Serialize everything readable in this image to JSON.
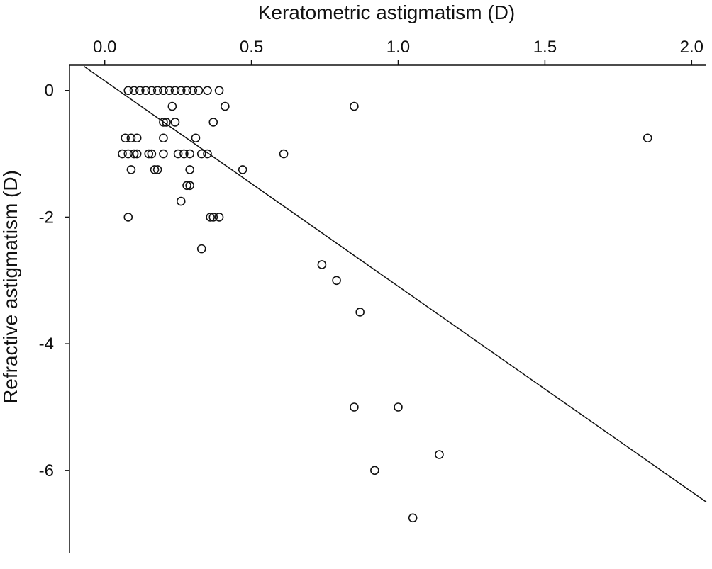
{
  "chart_data": {
    "type": "scatter",
    "xlabel": "Keratometric astigmatism (D)",
    "ylabel": "Refractive astigmatism (D)",
    "xlim": [
      -0.12,
      2.05
    ],
    "ylim": [
      -7.3,
      0.4
    ],
    "x_axis_position": "top",
    "x_ticks": [
      0.0,
      0.5,
      1.0,
      1.5,
      2.0
    ],
    "x_tick_labels": [
      "0.0",
      "0.5",
      "1.0",
      "1.5",
      "2.0"
    ],
    "y_ticks": [
      0,
      -2,
      -4,
      -6
    ],
    "y_tick_labels": [
      "0",
      "-2",
      "-4",
      "-6"
    ],
    "grid": false,
    "trend_line": {
      "x": [
        -0.07,
        2.05
      ],
      "y": [
        0.38,
        -6.5
      ]
    },
    "points": [
      {
        "x": 0.08,
        "y": 0
      },
      {
        "x": 0.1,
        "y": 0
      },
      {
        "x": 0.12,
        "y": 0
      },
      {
        "x": 0.14,
        "y": 0
      },
      {
        "x": 0.16,
        "y": 0
      },
      {
        "x": 0.18,
        "y": 0
      },
      {
        "x": 0.2,
        "y": 0
      },
      {
        "x": 0.22,
        "y": 0
      },
      {
        "x": 0.24,
        "y": 0
      },
      {
        "x": 0.26,
        "y": 0
      },
      {
        "x": 0.28,
        "y": 0
      },
      {
        "x": 0.3,
        "y": 0
      },
      {
        "x": 0.32,
        "y": 0
      },
      {
        "x": 0.35,
        "y": 0
      },
      {
        "x": 0.39,
        "y": 0
      },
      {
        "x": 0.85,
        "y": -0.25
      },
      {
        "x": 1.85,
        "y": -0.75
      },
      {
        "x": 0.23,
        "y": -0.25
      },
      {
        "x": 0.41,
        "y": -0.25
      },
      {
        "x": 0.2,
        "y": -0.5
      },
      {
        "x": 0.21,
        "y": -0.5
      },
      {
        "x": 0.24,
        "y": -0.5
      },
      {
        "x": 0.37,
        "y": -0.5
      },
      {
        "x": 0.07,
        "y": -0.75
      },
      {
        "x": 0.09,
        "y": -0.75
      },
      {
        "x": 0.11,
        "y": -0.75
      },
      {
        "x": 0.2,
        "y": -0.75
      },
      {
        "x": 0.31,
        "y": -0.75
      },
      {
        "x": 0.06,
        "y": -1.0
      },
      {
        "x": 0.08,
        "y": -1.0
      },
      {
        "x": 0.1,
        "y": -1.0
      },
      {
        "x": 0.11,
        "y": -1.0
      },
      {
        "x": 0.15,
        "y": -1.0
      },
      {
        "x": 0.16,
        "y": -1.0
      },
      {
        "x": 0.2,
        "y": -1.0
      },
      {
        "x": 0.25,
        "y": -1.0
      },
      {
        "x": 0.27,
        "y": -1.0
      },
      {
        "x": 0.29,
        "y": -1.0
      },
      {
        "x": 0.33,
        "y": -1.0
      },
      {
        "x": 0.35,
        "y": -1.0
      },
      {
        "x": 0.61,
        "y": -1.0
      },
      {
        "x": 0.09,
        "y": -1.25
      },
      {
        "x": 0.17,
        "y": -1.25
      },
      {
        "x": 0.18,
        "y": -1.25
      },
      {
        "x": 0.29,
        "y": -1.25
      },
      {
        "x": 0.47,
        "y": -1.25
      },
      {
        "x": 0.28,
        "y": -1.5
      },
      {
        "x": 0.29,
        "y": -1.5
      },
      {
        "x": 0.26,
        "y": -1.75
      },
      {
        "x": 0.08,
        "y": -2.0
      },
      {
        "x": 0.36,
        "y": -2.0
      },
      {
        "x": 0.37,
        "y": -2.0
      },
      {
        "x": 0.39,
        "y": -2.0
      },
      {
        "x": 0.33,
        "y": -2.5
      },
      {
        "x": 0.74,
        "y": -2.75
      },
      {
        "x": 0.79,
        "y": -3.0
      },
      {
        "x": 0.87,
        "y": -3.5
      },
      {
        "x": 0.85,
        "y": -5.0
      },
      {
        "x": 1.0,
        "y": -5.0
      },
      {
        "x": 1.14,
        "y": -5.75
      },
      {
        "x": 0.92,
        "y": -6.0
      },
      {
        "x": 1.05,
        "y": -6.75
      }
    ]
  }
}
